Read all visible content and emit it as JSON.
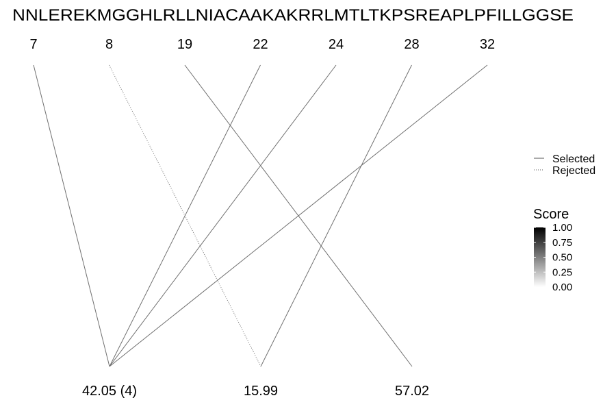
{
  "chart_data": {
    "type": "bipartite-link",
    "sequence": "NNLEREKMGGHLRLLNIACAAKAKRRLMTLTKPSREAPLPFILLGGSE",
    "positions": [
      "7",
      "8",
      "19",
      "22",
      "24",
      "28",
      "32"
    ],
    "masses": [
      "42.05 (4)",
      "15.99",
      "57.02"
    ],
    "links": [
      {
        "position": "7",
        "mass": "42.05 (4)",
        "status": "Selected",
        "score": 0.55
      },
      {
        "position": "8",
        "mass": "15.99",
        "status": "Rejected",
        "score": 0.55
      },
      {
        "position": "19",
        "mass": "57.02",
        "status": "Selected",
        "score": 0.55
      },
      {
        "position": "22",
        "mass": "42.05 (4)",
        "status": "Selected",
        "score": 0.55
      },
      {
        "position": "24",
        "mass": "42.05 (4)",
        "status": "Selected",
        "score": 0.55
      },
      {
        "position": "28",
        "mass": "15.99",
        "status": "Selected",
        "score": 0.55
      },
      {
        "position": "32",
        "mass": "42.05 (4)",
        "status": "Selected",
        "score": 0.55
      }
    ],
    "legend_status": {
      "entries": [
        {
          "label": "Selected",
          "style": "solid"
        },
        {
          "label": "Rejected",
          "style": "dotted"
        }
      ]
    },
    "legend_score": {
      "title": "Score",
      "ticks": [
        "1.00",
        "0.75",
        "0.50",
        "0.25",
        "0.00"
      ],
      "range": [
        0,
        1
      ],
      "colors": {
        "low": "#ffffff",
        "high": "#000000"
      }
    },
    "line_color": "#707070"
  }
}
